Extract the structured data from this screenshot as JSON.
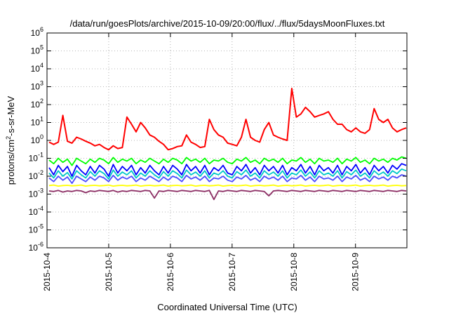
{
  "chart_data": {
    "type": "line",
    "title": "/data/run/goesPlots/archive/2015-10-09/20:00/flux/../flux/5daysMoonFluxes.txt",
    "xlabel": "Coordinated Universal Time (UTC)",
    "ylabel": {
      "base": "protons/cm",
      "sup": "2",
      "rest": "-s-sr-MeV"
    },
    "x_range": [
      "2015-10-04",
      "2015-10-09 20:00"
    ],
    "x_ticks": [
      "2015-10-4",
      "2015-10-5",
      "2015-10-6",
      "2015-10-7",
      "2015-10-8",
      "2015-10-9"
    ],
    "y_scale": "log",
    "ylim": [
      1e-06,
      1000000.0
    ],
    "y_ticks": [
      {
        "base": "10",
        "exp": "-6"
      },
      {
        "base": "10",
        "exp": "-5"
      },
      {
        "base": "10",
        "exp": "-4"
      },
      {
        "base": "10",
        "exp": "-3"
      },
      {
        "base": "10",
        "exp": "-2"
      },
      {
        "base": "10",
        "exp": "-1"
      },
      {
        "base": "10",
        "exp": "0"
      },
      {
        "base": "10",
        "exp": "1"
      },
      {
        "base": "10",
        "exp": "2"
      },
      {
        "base": "10",
        "exp": "3"
      },
      {
        "base": "10",
        "exp": "4"
      },
      {
        "base": "10",
        "exp": "5"
      },
      {
        "base": "10",
        "exp": "6"
      }
    ],
    "grid": true,
    "series": [
      {
        "color": "#ff0000",
        "values": [
          0.8,
          0.6,
          0.8,
          25,
          0.9,
          0.7,
          1.5,
          1.2,
          0.9,
          0.7,
          0.5,
          0.6,
          0.4,
          0.3,
          0.5,
          0.35,
          0.4,
          20,
          8,
          3,
          10,
          5,
          2,
          1.5,
          0.9,
          0.6,
          0.3,
          0.35,
          0.45,
          0.5,
          2,
          0.8,
          0.6,
          0.4,
          0.45,
          15,
          4,
          2,
          1.5,
          0.7,
          0.6,
          0.5,
          1.5,
          15,
          1.5,
          1,
          0.8,
          4,
          10,
          2,
          1.5,
          1.2,
          1,
          800,
          20,
          30,
          70,
          40,
          20,
          25,
          30,
          40,
          15,
          8,
          8,
          4,
          3,
          5,
          3,
          2.5,
          4,
          60,
          15,
          10,
          15,
          5,
          3,
          4,
          5
        ]
      },
      {
        "color": "#00ff00",
        "values": [
          0.08,
          0.05,
          0.1,
          0.06,
          0.09,
          0.04,
          0.1,
          0.07,
          0.05,
          0.09,
          0.06,
          0.1,
          0.08,
          0.05,
          0.11,
          0.06,
          0.09,
          0.07,
          0.1,
          0.05,
          0.08,
          0.06,
          0.1,
          0.07,
          0.05,
          0.09,
          0.06,
          0.1,
          0.08,
          0.05,
          0.11,
          0.07,
          0.09,
          0.06,
          0.1,
          0.05,
          0.08,
          0.07,
          0.1,
          0.06,
          0.05,
          0.09,
          0.07,
          0.11,
          0.06,
          0.08,
          0.05,
          0.1,
          0.07,
          0.09,
          0.06,
          0.1,
          0.05,
          0.08,
          0.07,
          0.11,
          0.06,
          0.09,
          0.05,
          0.1,
          0.07,
          0.08,
          0.06,
          0.1,
          0.05,
          0.09,
          0.07,
          0.11,
          0.06,
          0.08,
          0.05,
          0.1,
          0.07,
          0.09,
          0.06,
          0.1,
          0.08,
          0.12,
          0.1
        ]
      },
      {
        "color": "#00c8c8",
        "values": [
          0.015,
          0.008,
          0.02,
          0.01,
          0.016,
          0.007,
          0.02,
          0.012,
          0.008,
          0.018,
          0.01,
          0.02,
          0.014,
          0.007,
          0.022,
          0.01,
          0.017,
          0.012,
          0.02,
          0.008,
          0.015,
          0.01,
          0.02,
          0.012,
          0.008,
          0.018,
          0.01,
          0.02,
          0.014,
          0.008,
          0.022,
          0.012,
          0.017,
          0.01,
          0.02,
          0.008,
          0.015,
          0.012,
          0.02,
          0.01,
          0.008,
          0.018,
          0.012,
          0.022,
          0.01,
          0.015,
          0.008,
          0.02,
          0.012,
          0.017,
          0.01,
          0.02,
          0.008,
          0.015,
          0.012,
          0.022,
          0.01,
          0.017,
          0.008,
          0.02,
          0.012,
          0.015,
          0.01,
          0.02,
          0.008,
          0.018,
          0.012,
          0.022,
          0.01,
          0.015,
          0.008,
          0.02,
          0.012,
          0.017,
          0.01,
          0.02,
          0.014,
          0.025,
          0.02
        ]
      },
      {
        "color": "#0000ff",
        "values": [
          0.03,
          0.012,
          0.04,
          0.018,
          0.035,
          0.01,
          0.04,
          0.02,
          0.012,
          0.035,
          0.015,
          0.04,
          0.025,
          0.01,
          0.045,
          0.015,
          0.035,
          0.02,
          0.04,
          0.012,
          0.03,
          0.015,
          0.04,
          0.02,
          0.012,
          0.035,
          0.015,
          0.04,
          0.025,
          0.012,
          0.045,
          0.02,
          0.035,
          0.015,
          0.04,
          0.012,
          0.03,
          0.02,
          0.04,
          0.015,
          0.012,
          0.035,
          0.02,
          0.045,
          0.015,
          0.03,
          0.012,
          0.04,
          0.02,
          0.035,
          0.015,
          0.04,
          0.012,
          0.03,
          0.02,
          0.045,
          0.015,
          0.035,
          0.012,
          0.04,
          0.02,
          0.03,
          0.015,
          0.04,
          0.012,
          0.035,
          0.02,
          0.045,
          0.015,
          0.03,
          0.012,
          0.04,
          0.02,
          0.035,
          0.015,
          0.04,
          0.025,
          0.05,
          0.04
        ]
      },
      {
        "color": "#4b4bff",
        "values": [
          0.008,
          0.005,
          0.01,
          0.006,
          0.009,
          0.004,
          0.01,
          0.007,
          0.005,
          0.009,
          0.006,
          0.01,
          0.008,
          0.005,
          0.011,
          0.006,
          0.009,
          0.007,
          0.01,
          0.005,
          0.008,
          0.006,
          0.01,
          0.007,
          0.005,
          0.009,
          0.006,
          0.01,
          0.008,
          0.005,
          0.011,
          0.007,
          0.009,
          0.006,
          0.01,
          0.005,
          0.008,
          0.007,
          0.01,
          0.006,
          0.005,
          0.009,
          0.007,
          0.011,
          0.006,
          0.008,
          0.005,
          0.01,
          0.007,
          0.009,
          0.006,
          0.01,
          0.005,
          0.008,
          0.007,
          0.011,
          0.006,
          0.009,
          0.005,
          0.01,
          0.007,
          0.008,
          0.006,
          0.01,
          0.005,
          0.009,
          0.007,
          0.011,
          0.006,
          0.008,
          0.005,
          0.01,
          0.007,
          0.009,
          0.006,
          0.01,
          0.008,
          0.012,
          0.01
        ]
      },
      {
        "color": "#ffff00",
        "values": [
          0.003,
          0.0032,
          0.0028,
          0.003,
          0.0031,
          0.0029,
          0.003,
          0.0032,
          0.0028,
          0.003,
          0.0031,
          0.0029,
          0.003,
          0.0032,
          0.0028,
          0.003,
          0.0031,
          0.0029,
          0.003,
          0.0032,
          0.0028,
          0.003,
          0.0031,
          0.0029,
          0.003,
          0.0032,
          0.0028,
          0.003,
          0.0031,
          0.0029,
          0.003,
          0.0032,
          0.0028,
          0.003,
          0.0031,
          0.0029,
          0.003,
          0.0032,
          0.0028,
          0.003,
          0.0031,
          0.0029,
          0.003,
          0.0032,
          0.0028,
          0.003,
          0.0031,
          0.0029,
          0.003,
          0.0032,
          0.0028,
          0.003,
          0.0031,
          0.0029,
          0.003,
          0.0032,
          0.0028,
          0.003,
          0.0031,
          0.0029,
          0.003,
          0.0032,
          0.0028,
          0.003,
          0.0031,
          0.0029,
          0.003,
          0.0032,
          0.0028,
          0.003,
          0.0031,
          0.0029,
          0.003,
          0.0032,
          0.0028,
          0.003,
          0.0031,
          0.0029,
          0.003
        ]
      },
      {
        "color": "#8c2e64",
        "values": [
          0.0015,
          0.0014,
          0.0016,
          0.0013,
          0.0015,
          0.0014,
          0.0016,
          0.0015,
          0.0012,
          0.0015,
          0.0014,
          0.0016,
          0.0015,
          0.0014,
          0.0016,
          0.0013,
          0.0015,
          0.0014,
          0.0016,
          0.0015,
          0.0014,
          0.0016,
          0.0015,
          0.0006,
          0.0015,
          0.0014,
          0.0016,
          0.0015,
          0.0014,
          0.0016,
          0.0015,
          0.0014,
          0.0016,
          0.0015,
          0.0014,
          0.0016,
          0.0005,
          0.0015,
          0.0014,
          0.0016,
          0.0015,
          0.0014,
          0.0016,
          0.0015,
          0.0014,
          0.0016,
          0.0015,
          0.0014,
          0.0008,
          0.0015,
          0.0016,
          0.0015,
          0.0014,
          0.0016,
          0.0015,
          0.0014,
          0.0016,
          0.0015,
          0.0014,
          0.0016,
          0.0015,
          0.0014,
          0.0016,
          0.0015,
          0.0014,
          0.0016,
          0.0015,
          0.0014,
          0.0016,
          0.0015,
          0.0014,
          0.0016,
          0.0015,
          0.0014,
          0.0016,
          0.0015,
          0.0014,
          0.0016,
          0.0015
        ]
      }
    ]
  }
}
